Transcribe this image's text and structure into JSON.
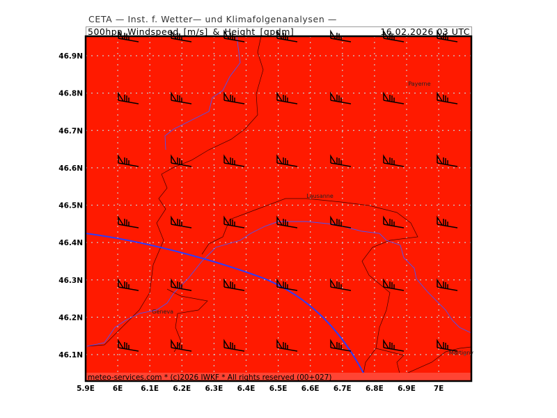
{
  "header": "CETA — Inst. f. Wetter— und Klimafolgenanalysen —",
  "title": "500hpa_Windspeed_[m/s]_&_Height_[gpdm]",
  "datetime": "16.02.2026  03 UTC",
  "footer": "meteo-services.com * (c)2026 IWKF * All rights reserved (00+027)",
  "colors": {
    "field": "#ff1a00",
    "contour": "#3344ff",
    "border": "#222222",
    "grid": "#cccccc"
  },
  "x_ticks": [
    "5.9E",
    "6E",
    "6.1E",
    "6.2E",
    "6.3E",
    "6.4E",
    "6.5E",
    "6.6E",
    "6.7E",
    "6.8E",
    "6.9E",
    "7E"
  ],
  "y_ticks": [
    "46.9N",
    "46.8N",
    "46.7N",
    "46.6N",
    "46.5N",
    "46.4N",
    "46.3N",
    "46.2N",
    "46.1N"
  ],
  "cities": [
    {
      "name": "Payerne",
      "lon": 6.94,
      "lat": 46.82
    },
    {
      "name": "Lausanne",
      "lon": 6.63,
      "lat": 46.52
    },
    {
      "name": "Geneva",
      "lon": 6.14,
      "lat": 46.21
    },
    {
      "name": "Martigny",
      "lon": 7.07,
      "lat": 46.1
    }
  ],
  "wind_barbs": {
    "icon": "wind-barb-icon",
    "direction": "west-northwest"
  }
}
